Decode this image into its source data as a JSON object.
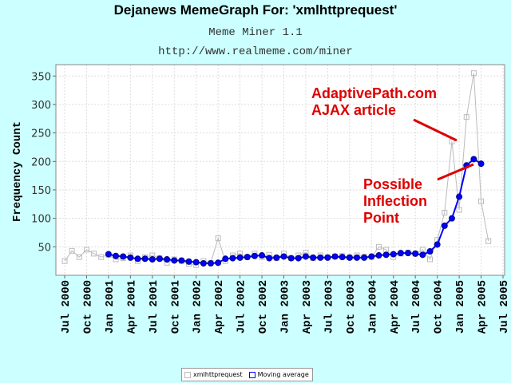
{
  "header": {
    "title": "Dejanews MemeGraph For: 'xmlhttprequest'",
    "subtitle": "Meme Miner 1.1",
    "url": "http://www.realmeme.com/miner"
  },
  "colors": {
    "background": "#ccffff",
    "raw_series": "#bbbbbb",
    "moving_average": "#0000ff",
    "annotation": "#dd0000"
  },
  "chart_data": {
    "type": "line",
    "ylabel": "Frequency Count",
    "xlabel": "",
    "ylim": [
      0,
      370
    ],
    "yticks": [
      50,
      100,
      150,
      200,
      250,
      300,
      350
    ],
    "grid": true,
    "legend_position": "bottom",
    "x_tick_labels": [
      "Jul 2000",
      "Oct 2000",
      "Jan 2001",
      "Apr 2001",
      "Jul 2001",
      "Oct 2001",
      "Jan 2002",
      "Apr 2002",
      "Jul 2002",
      "Oct 2002",
      "Jan 2003",
      "Apr 2003",
      "Jul 2003",
      "Oct 2003",
      "Jan 2004",
      "Apr 2004",
      "Jul 2004",
      "Oct 2004",
      "Jan 2005",
      "Apr 2005",
      "Jul 2005"
    ],
    "series": [
      {
        "name": "xmlhttprequest",
        "start": "2000-07",
        "values": [
          25,
          43,
          32,
          45,
          38,
          32,
          36,
          28,
          30,
          35,
          25,
          32,
          35,
          30,
          22,
          28,
          25,
          20,
          18,
          25,
          22,
          65,
          25,
          35,
          38,
          32,
          38,
          32,
          36,
          30,
          38,
          30,
          35,
          40,
          30,
          35,
          32,
          33,
          34,
          32,
          35,
          33,
          32,
          50,
          45,
          32,
          38,
          40,
          38,
          45,
          28,
          62,
          110,
          235,
          115,
          278,
          355,
          130,
          60
        ]
      },
      {
        "name": "Moving average",
        "start": "2001-01",
        "values": [
          37,
          34,
          33,
          31,
          29,
          29,
          28,
          29,
          28,
          26,
          26,
          24,
          23,
          21,
          21,
          22,
          29,
          30,
          31,
          32,
          34,
          35,
          30,
          31,
          33,
          30,
          30,
          33,
          31,
          31,
          31,
          33,
          32,
          31,
          31,
          31,
          33,
          35,
          36,
          37,
          39,
          39,
          38,
          36,
          42,
          54,
          87,
          100,
          138,
          193,
          204,
          196
        ]
      }
    ],
    "annotations": [
      {
        "text": [
          "AdaptivePath.com",
          "AJAX article"
        ]
      },
      {
        "text": [
          "Possible",
          "Inflection",
          "Point"
        ]
      }
    ]
  }
}
